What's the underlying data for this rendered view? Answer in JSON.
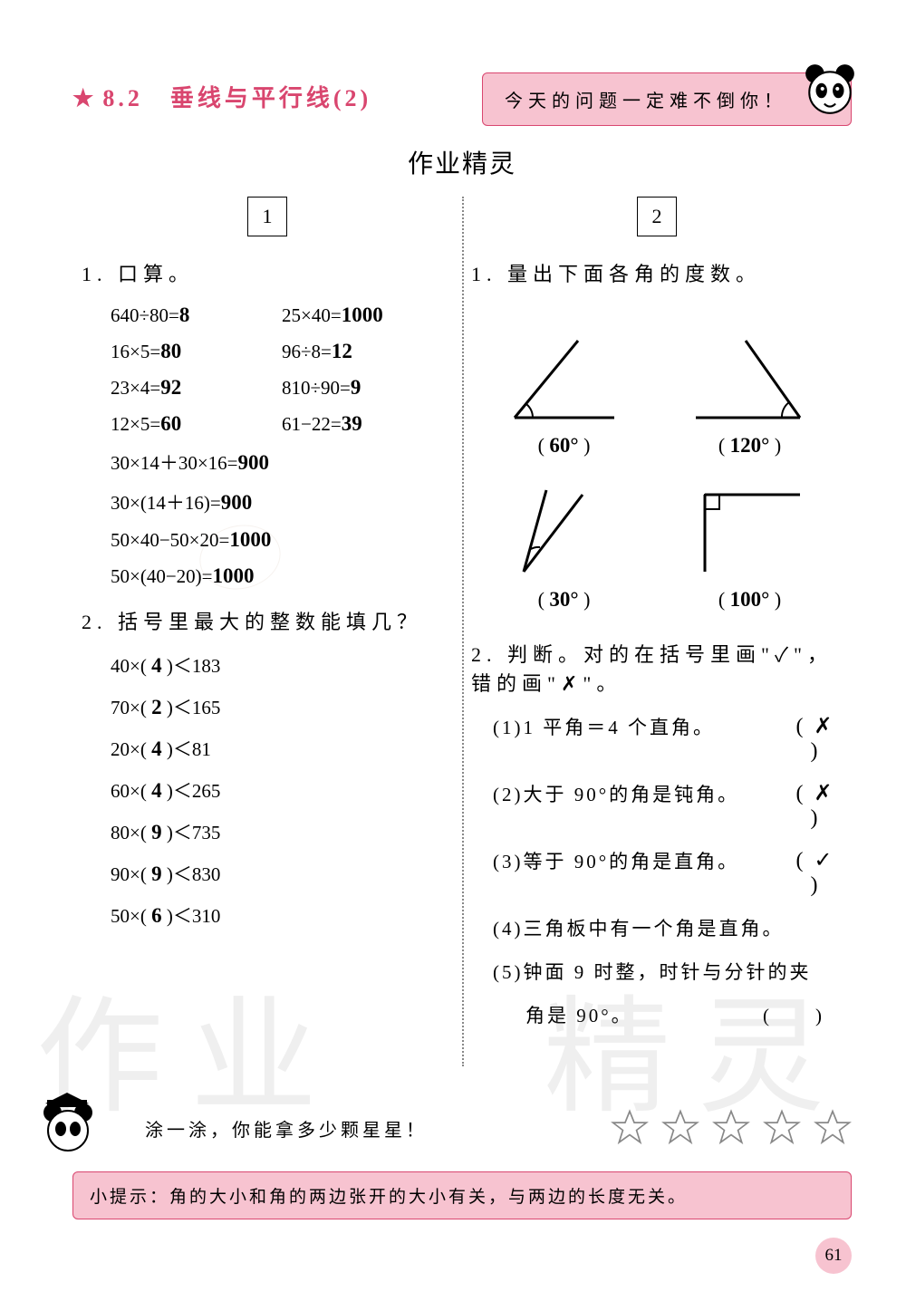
{
  "header": {
    "star": "★",
    "section_number": "8.2",
    "section_title": "垂线与平行线(2)",
    "banner_text": "今天的问题一定难不倒你！",
    "title_color": "#d9466f",
    "banner_bg": "#f7c3d0"
  },
  "handwritten_header": "作业精灵",
  "watermark_left": "作业",
  "watermark_right": "精灵",
  "columns": {
    "left": {
      "box_label": "1",
      "q1": {
        "title": "1. 口算。",
        "rows_paired": [
          {
            "l_expr": "640÷80=",
            "l_ans": "8",
            "r_expr": "25×40=",
            "r_ans": "1000"
          },
          {
            "l_expr": "16×5=",
            "l_ans": "80",
            "r_expr": "96÷8=",
            "r_ans": "12"
          },
          {
            "l_expr": "23×4=",
            "l_ans": "92",
            "r_expr": "810÷90=",
            "r_ans": "9"
          },
          {
            "l_expr": "12×5=",
            "l_ans": "60",
            "r_expr": "61−22=",
            "r_ans": "39"
          }
        ],
        "rows_single": [
          {
            "expr": "30×14＋30×16=",
            "ans": "900"
          },
          {
            "expr": "30×(14＋16)=",
            "ans": "900"
          },
          {
            "expr": "50×40−50×20=",
            "ans": "1000"
          },
          {
            "expr": "50×(40−20)=",
            "ans": "1000"
          }
        ]
      },
      "q2": {
        "title": "2. 括号里最大的整数能填几？",
        "rows": [
          {
            "pre": "40×(",
            "ans": "4",
            "post": ")＜183"
          },
          {
            "pre": "70×(",
            "ans": "2",
            "post": ")＜165"
          },
          {
            "pre": "20×(",
            "ans": "4",
            "post": ")＜81"
          },
          {
            "pre": "60×(",
            "ans": "4",
            "post": ")＜265"
          },
          {
            "pre": "80×(",
            "ans": "9",
            "post": ")＜735"
          },
          {
            "pre": "90×(",
            "ans": "9",
            "post": ")＜830"
          },
          {
            "pre": "50×(",
            "ans": "6",
            "post": ")＜310"
          }
        ]
      }
    },
    "right": {
      "box_label": "2",
      "q1": {
        "title": "1. 量出下面各角的度数。",
        "angles": [
          {
            "value": "60°",
            "shape": "acute"
          },
          {
            "value": "120°",
            "shape": "obtuse"
          },
          {
            "value": "30°",
            "shape": "narrow"
          },
          {
            "value": "100°",
            "shape": "right-ish"
          }
        ]
      },
      "q2": {
        "title": "2. 判断。对的在括号里画\"✓\"，错的画\"✗\"。",
        "items": [
          {
            "text": "(1)1 平角＝4 个直角。",
            "mark": "✗"
          },
          {
            "text": "(2)大于 90°的角是钝角。",
            "mark": "✗"
          },
          {
            "text": "(3)等于 90°的角是直角。",
            "mark": "✓"
          },
          {
            "text": "(4)三角板中有一个角是直角。",
            "mark": ""
          },
          {
            "text": "(5)钟面 9 时整，时针与分针的夹",
            "mark": ""
          }
        ],
        "item5_cont": "角是 90°。",
        "item5_mark_paren": "(　　)"
      }
    }
  },
  "footer": {
    "stars_prompt": "涂一涂，你能拿多少颗星星！",
    "star_count": 5,
    "hint_label": "小提示：",
    "hint_text": "角的大小和角的两边张开的大小有关，与两边的长度无关。"
  },
  "page_number": "61",
  "colors": {
    "accent": "#d9466f",
    "banner_bg": "#f7c3d0",
    "text": "#000000",
    "bg": "#ffffff",
    "divider": "#888888"
  }
}
